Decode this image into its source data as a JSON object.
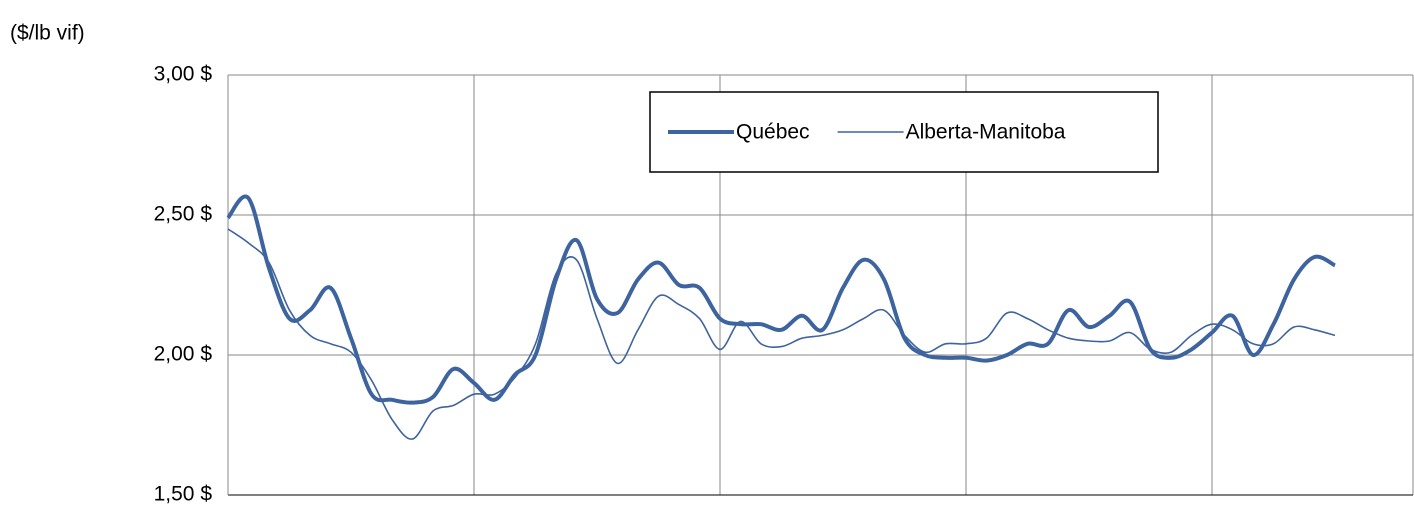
{
  "chart_data": {
    "type": "line",
    "y_label": "($/lb vif)",
    "categories": [
      null,
      null,
      null,
      null,
      null,
      null,
      null,
      null,
      null,
      null,
      null,
      null,
      null,
      null,
      null,
      null,
      null,
      null,
      null,
      null,
      null,
      null,
      null,
      null,
      null,
      null,
      null,
      null,
      null,
      null,
      null,
      null,
      null,
      null,
      null,
      null,
      null,
      null,
      null,
      null,
      null,
      null,
      null,
      null,
      null,
      null,
      null,
      null,
      null,
      null,
      null,
      null,
      null,
      null,
      null
    ],
    "series": [
      {
        "name": "Québec",
        "color": "#3e64a0",
        "width": 4,
        "values": [
          2.49,
          2.56,
          2.31,
          2.13,
          2.16,
          2.24,
          2.06,
          1.86,
          1.84,
          1.83,
          1.85,
          1.95,
          1.9,
          1.84,
          1.93,
          2.0,
          2.27,
          2.41,
          2.2,
          2.15,
          2.27,
          2.33,
          2.25,
          2.24,
          2.13,
          2.11,
          2.11,
          2.09,
          2.14,
          2.09,
          2.24,
          2.34,
          2.27,
          2.06,
          2.0,
          1.99,
          1.99,
          1.98,
          2.0,
          2.04,
          2.04,
          2.16,
          2.1,
          2.14,
          2.19,
          2.02,
          1.99,
          2.02,
          2.08,
          2.14,
          2.0,
          2.11,
          2.27,
          2.35,
          2.32
        ]
      },
      {
        "name": "Alberta-Manitoba",
        "color": "#3e64a0",
        "width": 1.6,
        "values": [
          2.45,
          2.4,
          2.33,
          2.16,
          2.07,
          2.04,
          2.01,
          1.91,
          1.77,
          1.7,
          1.8,
          1.82,
          1.86,
          1.86,
          1.92,
          2.04,
          2.29,
          2.34,
          2.13,
          1.97,
          2.09,
          2.21,
          2.18,
          2.13,
          2.02,
          2.12,
          2.04,
          2.03,
          2.06,
          2.07,
          2.09,
          2.13,
          2.16,
          2.07,
          2.01,
          2.04,
          2.04,
          2.06,
          2.15,
          2.13,
          2.09,
          2.06,
          2.05,
          2.05,
          2.08,
          2.02,
          2.01,
          2.07,
          2.11,
          2.09,
          2.04,
          2.04,
          2.1,
          2.09,
          2.07
        ]
      }
    ],
    "ylim": [
      1.5,
      3.0
    ],
    "yticks": [
      {
        "value": 1.5,
        "label": "1,50 $"
      },
      {
        "value": 2.0,
        "label": "2,00 $"
      },
      {
        "value": 2.5,
        "label": "2,50 $"
      },
      {
        "value": 3.0,
        "label": "3,00 $"
      }
    ],
    "grid": true
  }
}
